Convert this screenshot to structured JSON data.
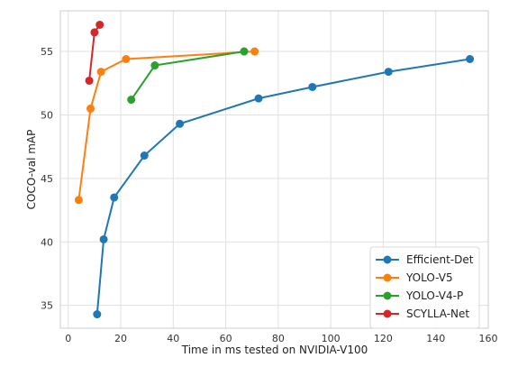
{
  "chart_data": {
    "type": "line",
    "title": "",
    "xlabel": "Time in ms tested on NVIDIA-V100",
    "ylabel": "COCO-val mAP",
    "xlim": [
      -3,
      160
    ],
    "ylim": [
      33.2,
      58.2
    ],
    "xticks": [
      0,
      20,
      40,
      60,
      80,
      100,
      120,
      140,
      160
    ],
    "yticks": [
      35,
      40,
      45,
      50,
      55
    ],
    "grid": true,
    "legend_position": "lower-right",
    "series": [
      {
        "name": "Efficient-Det",
        "color": "#1f77b4",
        "points": [
          [
            11,
            34.3
          ],
          [
            13.5,
            40.2
          ],
          [
            17.5,
            43.5
          ],
          [
            29,
            46.8
          ],
          [
            42.5,
            49.3
          ],
          [
            72.5,
            51.3
          ],
          [
            93,
            52.2
          ],
          [
            122,
            53.4
          ],
          [
            153,
            54.4
          ]
        ]
      },
      {
        "name": "YOLO-V5",
        "color": "#ff7f0e",
        "points": [
          [
            4,
            43.3
          ],
          [
            8.5,
            50.5
          ],
          [
            12.5,
            53.4
          ],
          [
            22,
            54.4
          ],
          [
            71,
            55.0
          ]
        ]
      },
      {
        "name": "YOLO-V4-P",
        "color": "#2ca02c",
        "points": [
          [
            24,
            51.2
          ],
          [
            33,
            53.9
          ],
          [
            67,
            55.0
          ]
        ]
      },
      {
        "name": "SCYLLA-Net",
        "color": "#d62728",
        "points": [
          [
            8,
            52.7
          ],
          [
            10,
            56.5
          ],
          [
            12,
            57.1
          ]
        ]
      }
    ]
  }
}
